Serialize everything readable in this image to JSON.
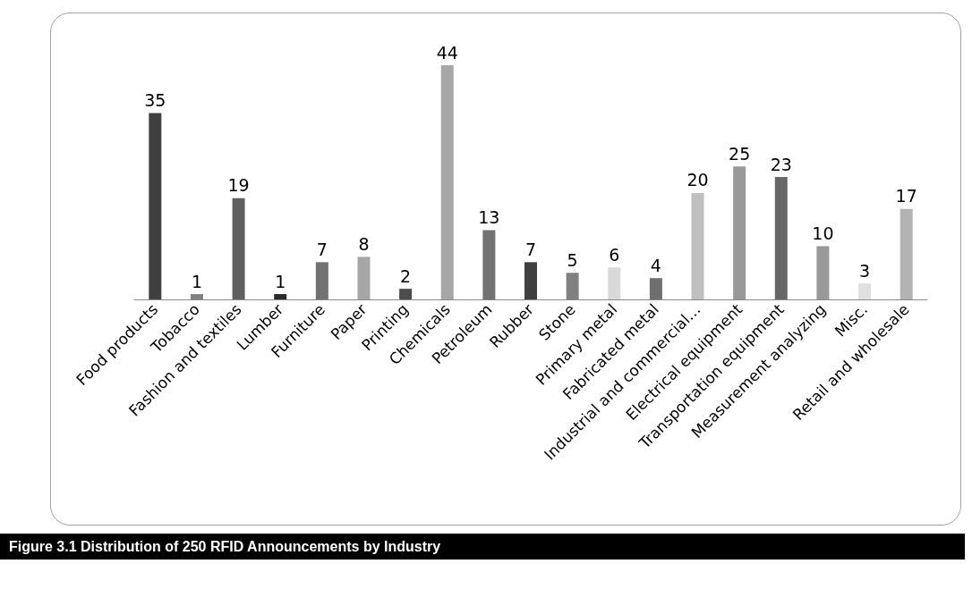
{
  "chart_data": {
    "type": "bar",
    "title": "Figure 3.1 Distribution of 250 RFID Announcements by Industry",
    "categories": [
      "Food products",
      "Tobacco",
      "Fashion and textiles",
      "Lumber",
      "Furniture",
      "Paper",
      "Printing",
      "Chemicals",
      "Petroleum",
      "Rubber",
      "Stone",
      "Primary metal",
      "Fabricated metal",
      "Industrial and commercial…",
      "Electrical equipment",
      "Transportation equipment",
      "Measurement analyzing",
      "Misc.",
      "Retail and wholesale"
    ],
    "values": [
      35,
      1,
      19,
      1,
      7,
      8,
      2,
      44,
      13,
      7,
      5,
      6,
      4,
      20,
      25,
      23,
      10,
      3,
      17
    ],
    "colors": [
      "#404040",
      "#808080",
      "#5f5f5f",
      "#2b2b2b",
      "#737373",
      "#a6a6a6",
      "#4d4d4d",
      "#a6a6a6",
      "#737373",
      "#404040",
      "#808080",
      "#d9d9d9",
      "#6f6f6f",
      "#bfbfbf",
      "#999999",
      "#666666",
      "#999999",
      "#e0e0e0",
      "#b3b3b3"
    ],
    "data_labels": true
  }
}
